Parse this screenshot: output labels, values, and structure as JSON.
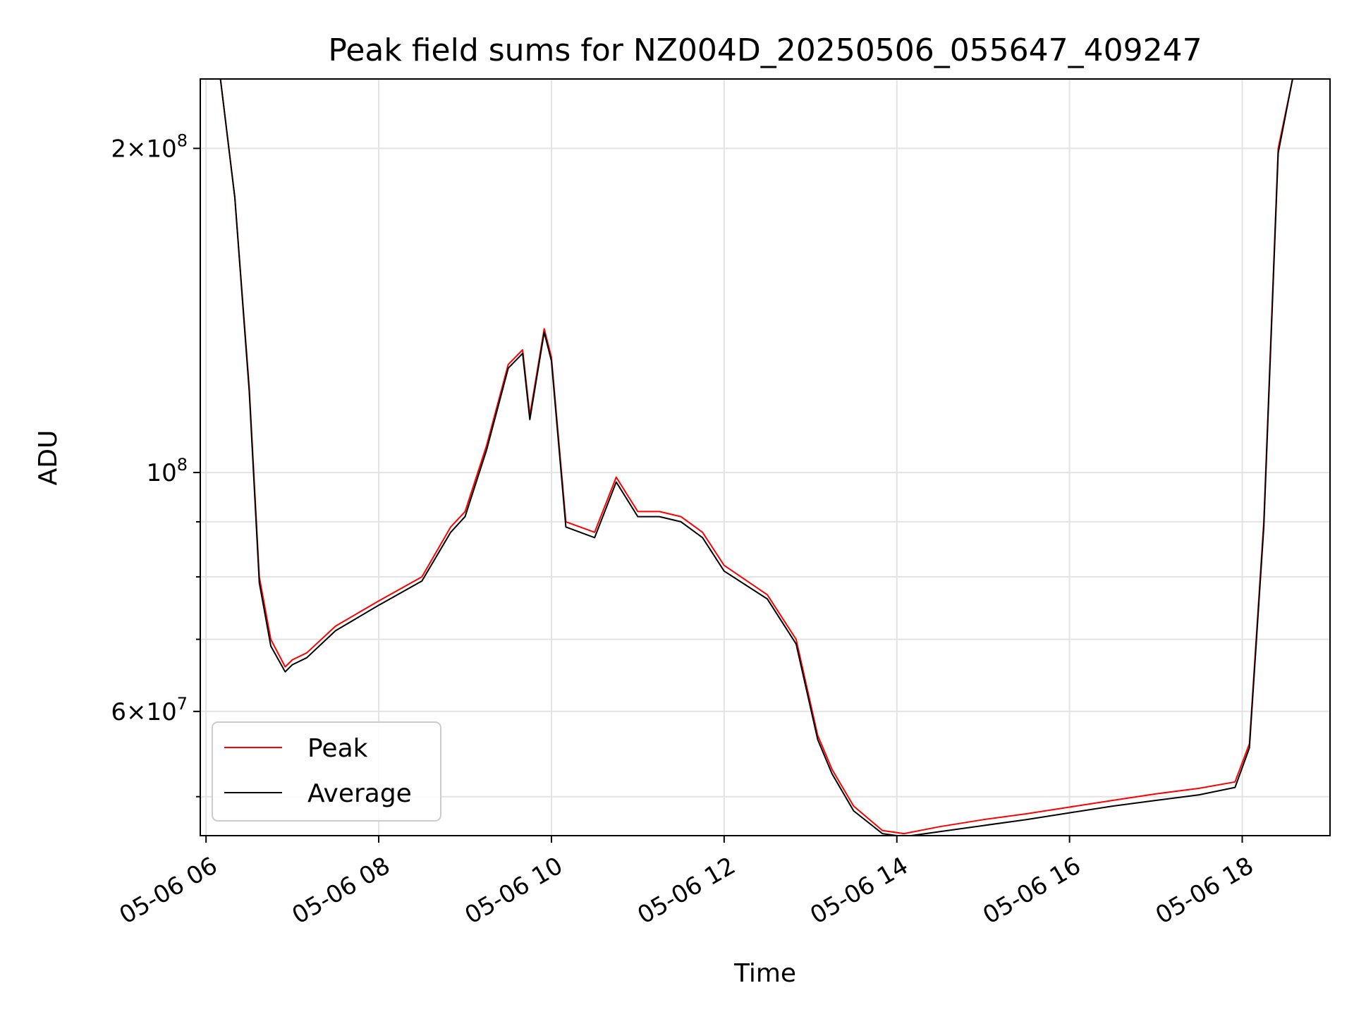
{
  "chart_data": {
    "type": "line",
    "title": "Peak field sums for NZ004D_20250506_055647_409247",
    "xlabel": "Time",
    "ylabel": "ADU",
    "y_scale": "log",
    "ylim": [
      46000000,
      232000000
    ],
    "xlim": [
      "2025-05-06 05:56",
      "2025-05-06 19:01"
    ],
    "grid": true,
    "legend_position": "lower-left",
    "x_ticks": [
      {
        "t": "2025-05-06 06:00",
        "label": "05-06 06"
      },
      {
        "t": "2025-05-06 08:00",
        "label": "05-06 08"
      },
      {
        "t": "2025-05-06 10:00",
        "label": "05-06 10"
      },
      {
        "t": "2025-05-06 12:00",
        "label": "05-06 12"
      },
      {
        "t": "2025-05-06 14:00",
        "label": "05-06 14"
      },
      {
        "t": "2025-05-06 16:00",
        "label": "05-06 16"
      },
      {
        "t": "2025-05-06 18:00",
        "label": "05-06 18"
      }
    ],
    "y_major_ticks": [
      {
        "v": 60000000,
        "mant": "6",
        "exp": "7"
      },
      {
        "v": 100000000,
        "mant": "",
        "exp": "8"
      },
      {
        "v": 200000000,
        "mant": "2",
        "exp": "8"
      }
    ],
    "y_minor_ticks": [
      50000000,
      70000000,
      80000000,
      90000000
    ],
    "series": [
      {
        "name": "Peak",
        "color": "#ff0000",
        "x": [
          "2025-05-06 05:56",
          "2025-05-06 06:10",
          "2025-05-06 06:20",
          "2025-05-06 06:30",
          "2025-05-06 06:37",
          "2025-05-06 06:45",
          "2025-05-06 06:55",
          "2025-05-06 07:00",
          "2025-05-06 07:10",
          "2025-05-06 07:30",
          "2025-05-06 08:00",
          "2025-05-06 08:30",
          "2025-05-06 08:50",
          "2025-05-06 09:00",
          "2025-05-06 09:15",
          "2025-05-06 09:30",
          "2025-05-06 09:40",
          "2025-05-06 09:45",
          "2025-05-06 09:55",
          "2025-05-06 10:00",
          "2025-05-06 10:10",
          "2025-05-06 10:30",
          "2025-05-06 10:45",
          "2025-05-06 11:00",
          "2025-05-06 11:15",
          "2025-05-06 11:30",
          "2025-05-06 11:45",
          "2025-05-06 12:00",
          "2025-05-06 12:30",
          "2025-05-06 12:50",
          "2025-05-06 13:05",
          "2025-05-06 13:15",
          "2025-05-06 13:30",
          "2025-05-06 13:50",
          "2025-05-06 14:05",
          "2025-05-06 14:30",
          "2025-05-06 15:00",
          "2025-05-06 15:30",
          "2025-05-06 16:00",
          "2025-05-06 16:30",
          "2025-05-06 17:00",
          "2025-05-06 17:30",
          "2025-05-06 17:55",
          "2025-05-06 18:05",
          "2025-05-06 18:15",
          "2025-05-06 18:25",
          "2025-05-06 18:35",
          "2025-05-06 18:45",
          "2025-05-06 19:01"
        ],
        "values": [
          232000000,
          232000000,
          180000000,
          120000000,
          80000000,
          70000000,
          66000000,
          67000000,
          68000000,
          72000000,
          76000000,
          80000000,
          89000000,
          92000000,
          106000000,
          126000000,
          130000000,
          113000000,
          136000000,
          128000000,
          90000000,
          88000000,
          99000000,
          92000000,
          92000000,
          91000000,
          88000000,
          82000000,
          77000000,
          70000000,
          57000000,
          53000000,
          49000000,
          46500000,
          46200000,
          46900000,
          47600000,
          48200000,
          48900000,
          49600000,
          50300000,
          50900000,
          51600000,
          56000000,
          90000000,
          200000000,
          232000000,
          232000000,
          232000000
        ]
      },
      {
        "name": "Average",
        "color": "#000000",
        "x": [
          "2025-05-06 05:56",
          "2025-05-06 06:10",
          "2025-05-06 06:20",
          "2025-05-06 06:30",
          "2025-05-06 06:37",
          "2025-05-06 06:45",
          "2025-05-06 06:55",
          "2025-05-06 07:00",
          "2025-05-06 07:10",
          "2025-05-06 07:30",
          "2025-05-06 08:00",
          "2025-05-06 08:30",
          "2025-05-06 08:50",
          "2025-05-06 09:00",
          "2025-05-06 09:15",
          "2025-05-06 09:30",
          "2025-05-06 09:40",
          "2025-05-06 09:45",
          "2025-05-06 09:55",
          "2025-05-06 10:00",
          "2025-05-06 10:10",
          "2025-05-06 10:30",
          "2025-05-06 10:45",
          "2025-05-06 11:00",
          "2025-05-06 11:15",
          "2025-05-06 11:30",
          "2025-05-06 11:45",
          "2025-05-06 12:00",
          "2025-05-06 12:30",
          "2025-05-06 12:50",
          "2025-05-06 13:05",
          "2025-05-06 13:15",
          "2025-05-06 13:30",
          "2025-05-06 13:50",
          "2025-05-06 14:05",
          "2025-05-06 14:30",
          "2025-05-06 15:00",
          "2025-05-06 15:30",
          "2025-05-06 16:00",
          "2025-05-06 16:30",
          "2025-05-06 17:00",
          "2025-05-06 17:30",
          "2025-05-06 17:55",
          "2025-05-06 18:05",
          "2025-05-06 18:15",
          "2025-05-06 18:25",
          "2025-05-06 18:35",
          "2025-05-06 18:45",
          "2025-05-06 19:01"
        ],
        "values": [
          232000000,
          232000000,
          180000000,
          119000000,
          79000000,
          69000000,
          65300000,
          66300000,
          67300000,
          71300000,
          75300000,
          79300000,
          88000000,
          91000000,
          105000000,
          125000000,
          129000000,
          112000000,
          135000000,
          127000000,
          89000000,
          87000000,
          98000000,
          91000000,
          91000000,
          90000000,
          87000000,
          81000000,
          76300000,
          69300000,
          56500000,
          52500000,
          48500000,
          46200000,
          45900000,
          46400000,
          47000000,
          47600000,
          48300000,
          49000000,
          49600000,
          50200000,
          51000000,
          55500000,
          89000000,
          198000000,
          232000000,
          232000000,
          232000000
        ]
      }
    ]
  }
}
